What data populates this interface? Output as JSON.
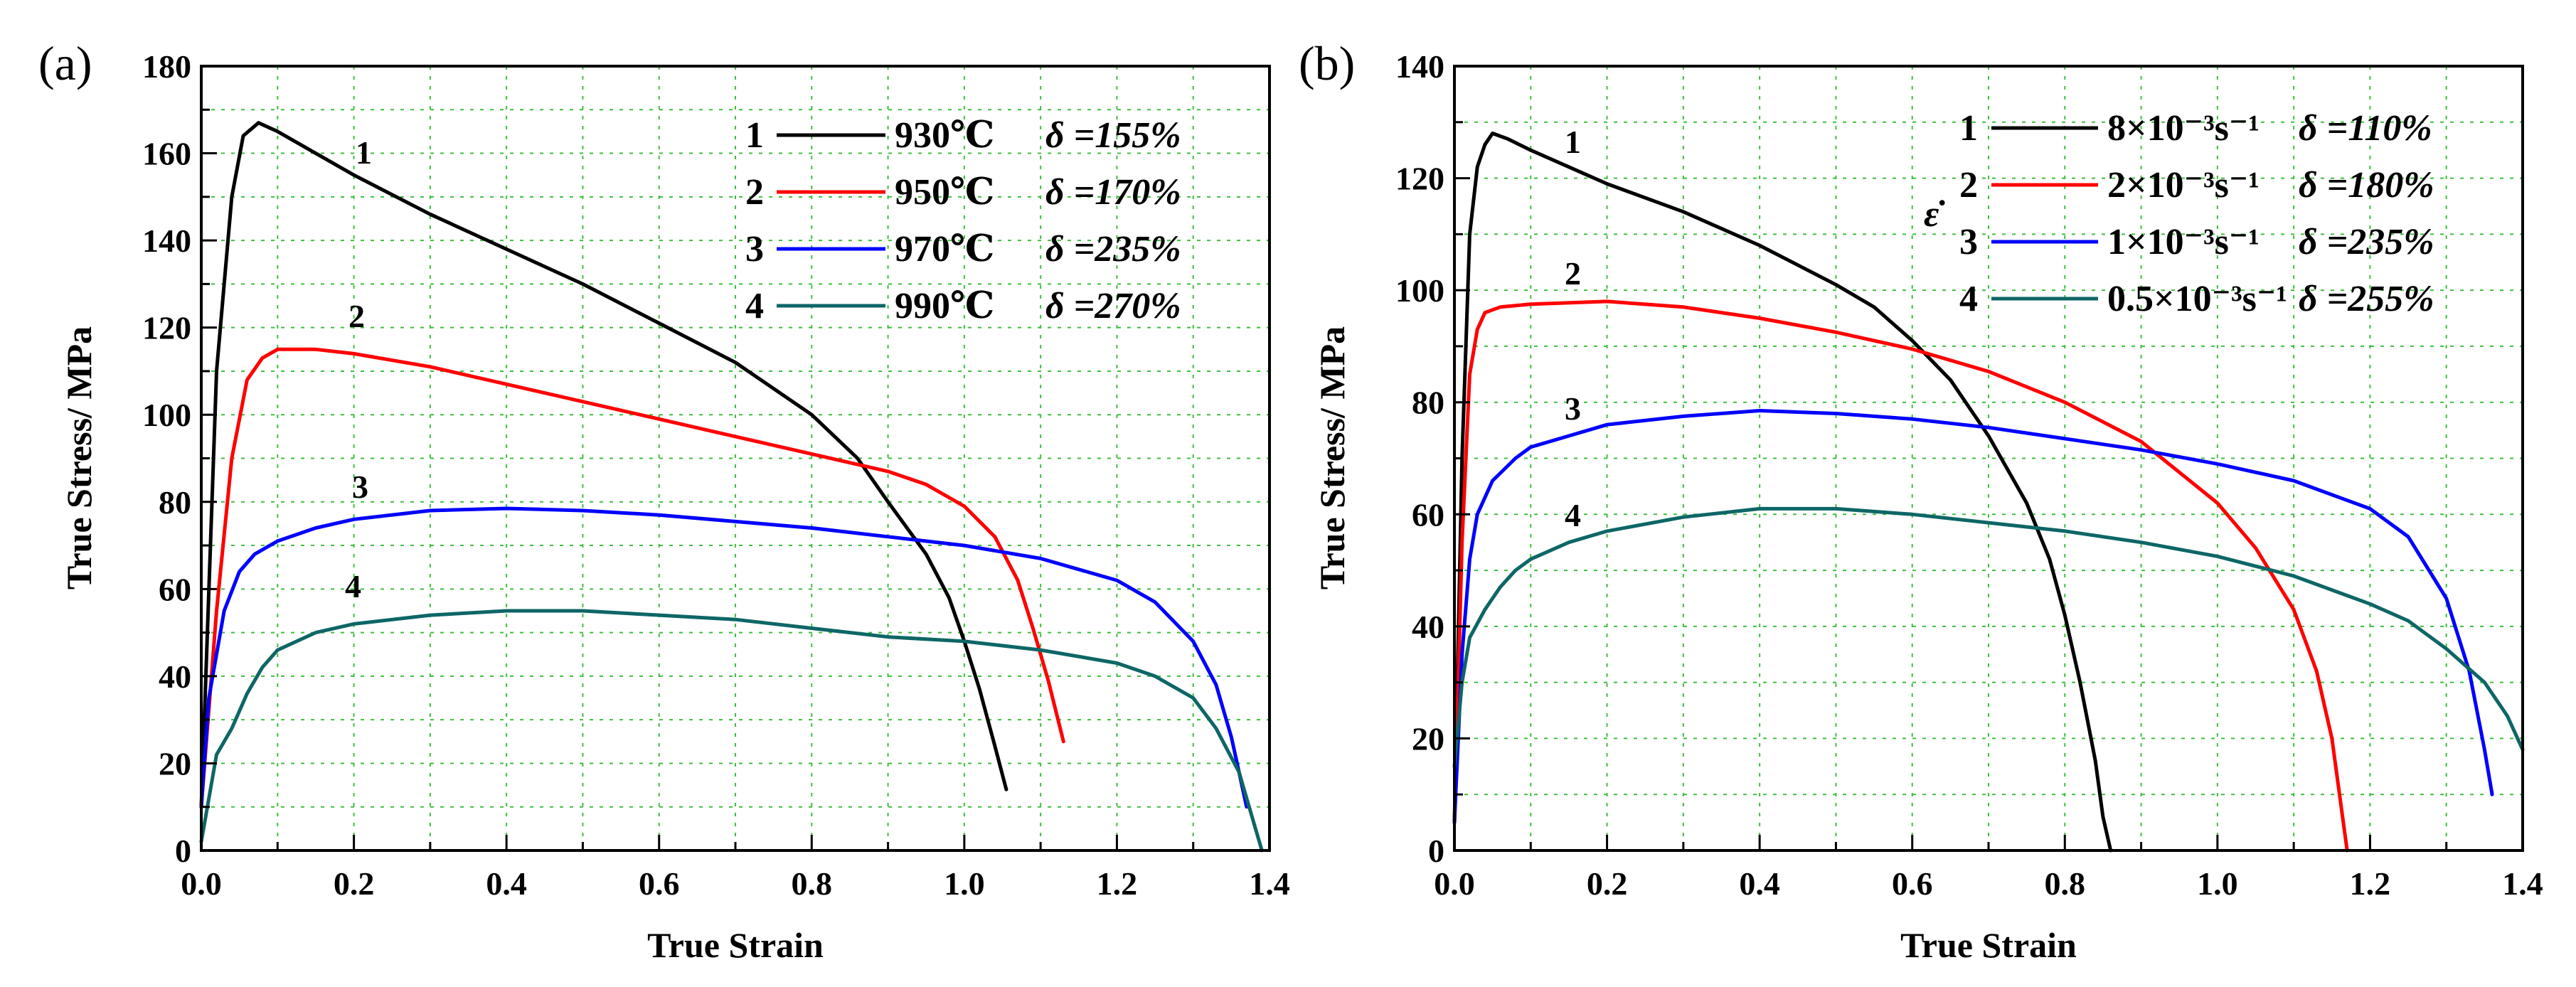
{
  "chart_data": [
    {
      "type": "line",
      "panel_label": "(a)",
      "xlabel": "True Strain",
      "ylabel": "True Stress/ MPa",
      "xlim": [
        0.0,
        1.4
      ],
      "ylim": [
        0,
        180
      ],
      "xticks": [
        "0.0",
        "0.2",
        "0.4",
        "0.6",
        "0.8",
        "1.0",
        "1.2",
        "1.4"
      ],
      "yticks": [
        "0",
        "20",
        "40",
        "60",
        "80",
        "100",
        "120",
        "140",
        "160",
        "180"
      ],
      "grid": true,
      "legend_position": "top-right",
      "series": [
        {
          "name": "930℃",
          "number": "1",
          "delta_label": "δ =155%",
          "color": "#000000",
          "x": [
            0.0,
            0.02,
            0.04,
            0.055,
            0.075,
            0.1,
            0.15,
            0.2,
            0.3,
            0.4,
            0.5,
            0.6,
            0.7,
            0.8,
            0.86,
            0.9,
            0.95,
            0.98,
            1.0,
            1.02,
            1.04,
            1.055
          ],
          "values": [
            10,
            110,
            150,
            164,
            167,
            165,
            160,
            155,
            146,
            138,
            130,
            121,
            112,
            100,
            90,
            80,
            68,
            58,
            48,
            37,
            24,
            14
          ]
        },
        {
          "name": "950℃",
          "number": "2",
          "delta_label": "δ =170%",
          "color": "#ff0000",
          "x": [
            0.0,
            0.02,
            0.04,
            0.06,
            0.08,
            0.1,
            0.15,
            0.2,
            0.3,
            0.4,
            0.5,
            0.6,
            0.7,
            0.8,
            0.9,
            0.95,
            1.0,
            1.04,
            1.07,
            1.09,
            1.11,
            1.13
          ],
          "values": [
            10,
            55,
            90,
            108,
            113,
            115,
            115,
            114,
            111,
            107,
            103,
            99,
            95,
            91,
            87,
            84,
            79,
            72,
            62,
            51,
            39,
            25
          ]
        },
        {
          "name": "970℃",
          "number": "3",
          "delta_label": "δ =235%",
          "color": "#0000ff",
          "x": [
            0.0,
            0.01,
            0.03,
            0.05,
            0.07,
            0.1,
            0.15,
            0.2,
            0.3,
            0.4,
            0.5,
            0.6,
            0.7,
            0.8,
            0.9,
            1.0,
            1.1,
            1.2,
            1.25,
            1.3,
            1.33,
            1.35,
            1.37
          ],
          "values": [
            10,
            35,
            55,
            64,
            68,
            71,
            74,
            76,
            78,
            78.5,
            78,
            77,
            75.5,
            74,
            72,
            70,
            67,
            62,
            57,
            48,
            38,
            26,
            10
          ]
        },
        {
          "name": "990℃",
          "number": "4",
          "delta_label": "δ =270%",
          "color": "#0e6666",
          "x": [
            0.0,
            0.02,
            0.04,
            0.06,
            0.08,
            0.1,
            0.15,
            0.2,
            0.3,
            0.4,
            0.5,
            0.6,
            0.7,
            0.8,
            0.9,
            1.0,
            1.1,
            1.2,
            1.25,
            1.3,
            1.33,
            1.36,
            1.38,
            1.39
          ],
          "values": [
            2,
            22,
            28,
            36,
            42,
            46,
            50,
            52,
            54,
            55,
            55,
            54,
            53,
            51,
            49,
            48,
            46,
            43,
            40,
            35,
            28,
            18,
            6,
            0
          ]
        }
      ]
    },
    {
      "type": "line",
      "panel_label": "(b)",
      "xlabel": "True Strain",
      "ylabel": "True Stress/ MPa",
      "xlim": [
        0.0,
        1.4
      ],
      "ylim": [
        0,
        140
      ],
      "xticks": [
        "0.0",
        "0.2",
        "0.4",
        "0.6",
        "0.8",
        "1.0",
        "1.2",
        "1.4"
      ],
      "yticks": [
        "0",
        "20",
        "40",
        "60",
        "80",
        "100",
        "120",
        "140"
      ],
      "grid": true,
      "legend_position": "top-right",
      "legend_symbol": "ε̇",
      "series": [
        {
          "name": "8×10⁻³s⁻¹",
          "number": "1",
          "delta_label": "δ =110%",
          "color": "#000000",
          "x": [
            0.0,
            0.01,
            0.02,
            0.03,
            0.04,
            0.05,
            0.07,
            0.1,
            0.15,
            0.2,
            0.3,
            0.4,
            0.5,
            0.55,
            0.6,
            0.65,
            0.7,
            0.75,
            0.78,
            0.8,
            0.82,
            0.84,
            0.85,
            0.86
          ],
          "values": [
            5,
            70,
            110,
            122,
            126,
            128,
            127,
            125,
            122,
            119,
            114,
            108,
            101,
            97,
            91,
            84,
            74,
            62,
            52,
            42,
            30,
            16,
            6,
            0
          ]
        },
        {
          "name": "2×10⁻³s⁻¹",
          "number": "2",
          "delta_label": "δ =180%",
          "color": "#ff0000",
          "x": [
            0.0,
            0.01,
            0.02,
            0.03,
            0.04,
            0.06,
            0.1,
            0.2,
            0.3,
            0.4,
            0.5,
            0.6,
            0.7,
            0.8,
            0.9,
            1.0,
            1.05,
            1.1,
            1.13,
            1.15,
            1.16,
            1.17
          ],
          "values": [
            5,
            55,
            85,
            93,
            96,
            97,
            97.5,
            98,
            97,
            95,
            92.5,
            89.5,
            85.5,
            80,
            73,
            62,
            54,
            43,
            32,
            20,
            10,
            0
          ]
        },
        {
          "name": "1×10⁻³s⁻¹",
          "number": "3",
          "delta_label": "δ =235%",
          "color": "#0000ff",
          "x": [
            0.0,
            0.01,
            0.02,
            0.03,
            0.05,
            0.08,
            0.1,
            0.15,
            0.2,
            0.3,
            0.4,
            0.5,
            0.6,
            0.7,
            0.8,
            0.9,
            1.0,
            1.1,
            1.2,
            1.25,
            1.3,
            1.33,
            1.35,
            1.36
          ],
          "values": [
            5,
            35,
            52,
            60,
            66,
            70,
            72,
            74,
            76,
            77.5,
            78.5,
            78,
            77,
            75.5,
            73.5,
            71.5,
            69,
            66,
            61,
            56,
            45,
            32,
            18,
            10
          ]
        },
        {
          "name": "0.5×10⁻³s⁻¹",
          "number": "4",
          "delta_label": "δ =255%",
          "color": "#0e6666",
          "x": [
            0.0,
            0.01,
            0.02,
            0.04,
            0.06,
            0.08,
            0.1,
            0.15,
            0.2,
            0.3,
            0.4,
            0.5,
            0.6,
            0.7,
            0.8,
            0.9,
            1.0,
            1.1,
            1.2,
            1.25,
            1.3,
            1.35,
            1.38,
            1.4
          ],
          "values": [
            15,
            30,
            38,
            43,
            47,
            50,
            52,
            55,
            57,
            59.5,
            61,
            61,
            60,
            58.5,
            57,
            55,
            52.5,
            49,
            44,
            41,
            36,
            30,
            24,
            18
          ]
        }
      ]
    }
  ]
}
